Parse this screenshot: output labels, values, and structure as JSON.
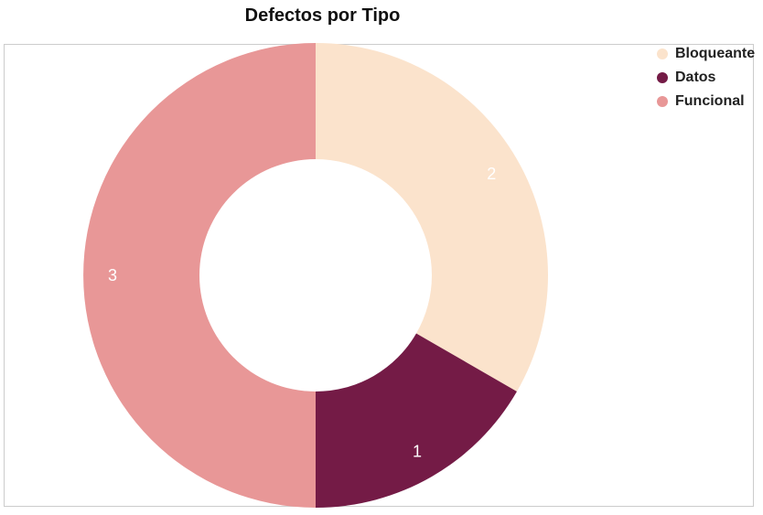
{
  "chart_data": {
    "type": "pie",
    "variant": "donut",
    "title": "Defectos por Tipo",
    "categories": [
      "Bloqueante",
      "Datos",
      "Funcional"
    ],
    "values": [
      2,
      1,
      3
    ],
    "colors": [
      "#fbe3cc",
      "#741b46",
      "#e89797"
    ],
    "data_labels": [
      "2",
      "1",
      "3"
    ],
    "legend_position": "top-right"
  }
}
